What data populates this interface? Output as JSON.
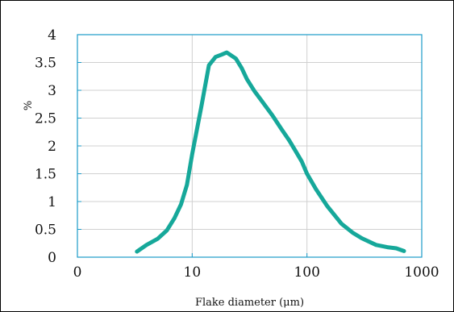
{
  "chart_data": {
    "type": "line",
    "xscale": "log",
    "xlim": [
      1,
      1000
    ],
    "ylim": [
      0,
      4
    ],
    "xticks": [
      "0",
      "10",
      "100",
      "1000"
    ],
    "yticks": [
      "0",
      "0.5",
      "1",
      "1.5",
      "2",
      "2.5",
      "3",
      "3.5",
      "4"
    ],
    "xlabel": "Flake diameter (μm)",
    "ylabel": "%",
    "grid": true,
    "series": [
      {
        "color": "#16a89a",
        "x": [
          3.3,
          4,
          5,
          6,
          7,
          8,
          9,
          10,
          12,
          14,
          16,
          18,
          20,
          24,
          27,
          30,
          35,
          40,
          50,
          60,
          70,
          80,
          90,
          100,
          120,
          150,
          200,
          250,
          300,
          400,
          500,
          600,
          700
        ],
        "y": [
          0.1,
          0.22,
          0.33,
          0.48,
          0.7,
          0.95,
          1.3,
          1.85,
          2.7,
          3.45,
          3.6,
          3.64,
          3.68,
          3.57,
          3.4,
          3.2,
          2.98,
          2.82,
          2.55,
          2.3,
          2.1,
          1.9,
          1.72,
          1.5,
          1.22,
          0.92,
          0.6,
          0.44,
          0.34,
          0.22,
          0.18,
          0.16,
          0.11
        ]
      }
    ]
  },
  "colors": {
    "axis": "#1a9bc9",
    "grid": "#d0d0d0",
    "line": "#16a89a"
  }
}
